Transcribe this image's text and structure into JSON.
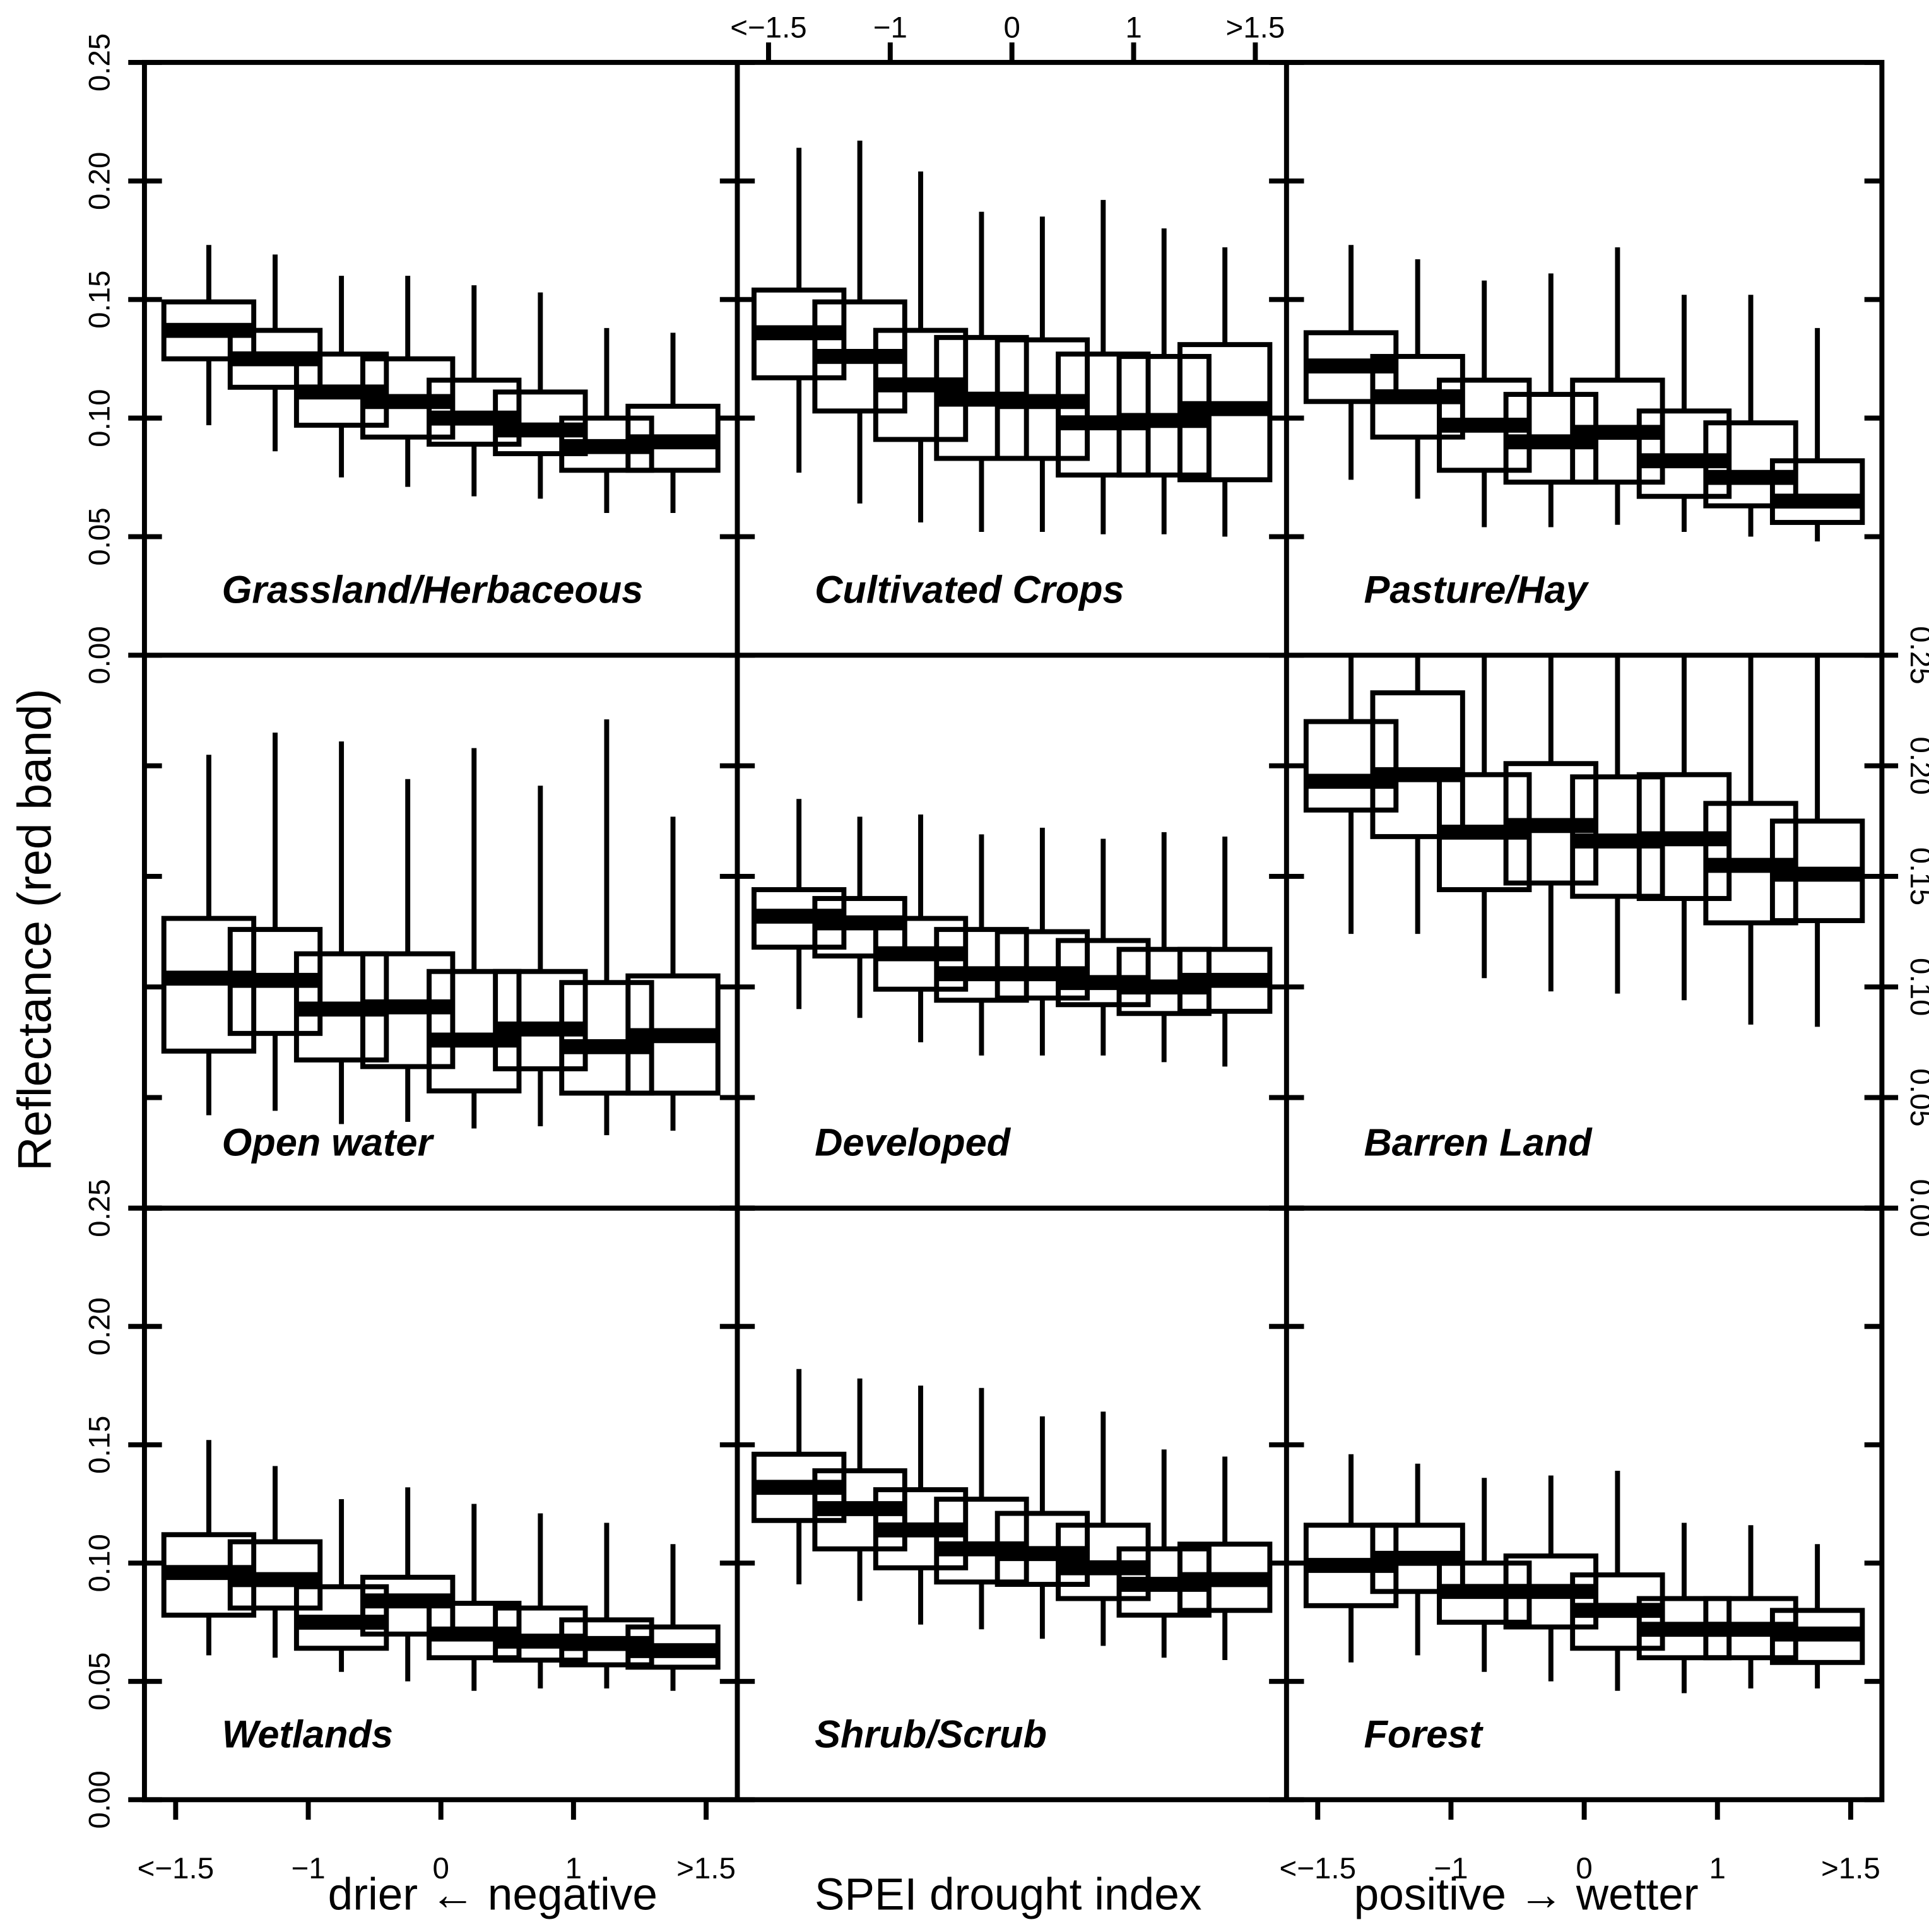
{
  "figure": {
    "ylabel": "Reflectance (red band)",
    "xlabel_left": "drier ← negative",
    "xlabel_center": "SPEI drought index",
    "xlabel_right": "positive → wetter"
  },
  "colors": {
    "ink": "#000000",
    "background": "#ffffff"
  },
  "axes": {
    "x_tick_labels": [
      "<−1.5",
      "−1",
      "0",
      "1",
      ">1.5"
    ],
    "y_tick_labels": [
      "0.00",
      "0.05",
      "0.10",
      "0.15",
      "0.20",
      "0.25"
    ]
  },
  "chart_data": [
    {
      "type": "box",
      "title": "Grassland/Herbaceous",
      "ylim": [
        0,
        0.25
      ],
      "categories": [
        "<−1.5",
        "",
        "−1",
        "",
        "0",
        "",
        "1",
        ">1.5"
      ],
      "boxes": [
        {
          "whisker_low": 0.097,
          "q1": 0.125,
          "median": 0.137,
          "q3": 0.149,
          "whisker_high": 0.173
        },
        {
          "whisker_low": 0.086,
          "q1": 0.113,
          "median": 0.125,
          "q3": 0.137,
          "whisker_high": 0.169
        },
        {
          "whisker_low": 0.075,
          "q1": 0.097,
          "median": 0.111,
          "q3": 0.127,
          "whisker_high": 0.16
        },
        {
          "whisker_low": 0.071,
          "q1": 0.092,
          "median": 0.107,
          "q3": 0.125,
          "whisker_high": 0.16
        },
        {
          "whisker_low": 0.067,
          "q1": 0.089,
          "median": 0.1,
          "q3": 0.116,
          "whisker_high": 0.156
        },
        {
          "whisker_low": 0.066,
          "q1": 0.085,
          "median": 0.095,
          "q3": 0.111,
          "whisker_high": 0.153
        },
        {
          "whisker_low": 0.06,
          "q1": 0.078,
          "median": 0.088,
          "q3": 0.1,
          "whisker_high": 0.138
        },
        {
          "whisker_low": 0.06,
          "q1": 0.078,
          "median": 0.09,
          "q3": 0.105,
          "whisker_high": 0.136
        }
      ]
    },
    {
      "type": "box",
      "title": "Cultivated Crops",
      "ylim": [
        0,
        0.25
      ],
      "categories": [
        "<−1.5",
        "",
        "−1",
        "",
        "0",
        "",
        "1",
        ">1.5"
      ],
      "boxes": [
        {
          "whisker_low": 0.077,
          "q1": 0.117,
          "median": 0.136,
          "q3": 0.154,
          "whisker_high": 0.214
        },
        {
          "whisker_low": 0.064,
          "q1": 0.103,
          "median": 0.126,
          "q3": 0.149,
          "whisker_high": 0.217
        },
        {
          "whisker_low": 0.056,
          "q1": 0.091,
          "median": 0.114,
          "q3": 0.137,
          "whisker_high": 0.204
        },
        {
          "whisker_low": 0.052,
          "q1": 0.083,
          "median": 0.108,
          "q3": 0.134,
          "whisker_high": 0.187
        },
        {
          "whisker_low": 0.052,
          "q1": 0.083,
          "median": 0.107,
          "q3": 0.133,
          "whisker_high": 0.185
        },
        {
          "whisker_low": 0.051,
          "q1": 0.076,
          "median": 0.098,
          "q3": 0.127,
          "whisker_high": 0.192
        },
        {
          "whisker_low": 0.051,
          "q1": 0.076,
          "median": 0.099,
          "q3": 0.126,
          "whisker_high": 0.18
        },
        {
          "whisker_low": 0.05,
          "q1": 0.074,
          "median": 0.104,
          "q3": 0.131,
          "whisker_high": 0.172
        }
      ]
    },
    {
      "type": "box",
      "title": "Pasture/Hay",
      "ylim": [
        0,
        0.25
      ],
      "categories": [
        "<−1.5",
        "",
        "−1",
        "",
        "0",
        "",
        "1",
        ">1.5"
      ],
      "boxes": [
        {
          "whisker_low": 0.074,
          "q1": 0.107,
          "median": 0.122,
          "q3": 0.136,
          "whisker_high": 0.173
        },
        {
          "whisker_low": 0.066,
          "q1": 0.092,
          "median": 0.109,
          "q3": 0.126,
          "whisker_high": 0.167
        },
        {
          "whisker_low": 0.054,
          "q1": 0.078,
          "median": 0.097,
          "q3": 0.116,
          "whisker_high": 0.158
        },
        {
          "whisker_low": 0.054,
          "q1": 0.073,
          "median": 0.09,
          "q3": 0.11,
          "whisker_high": 0.161
        },
        {
          "whisker_low": 0.055,
          "q1": 0.073,
          "median": 0.094,
          "q3": 0.116,
          "whisker_high": 0.172
        },
        {
          "whisker_low": 0.052,
          "q1": 0.067,
          "median": 0.082,
          "q3": 0.103,
          "whisker_high": 0.152
        },
        {
          "whisker_low": 0.05,
          "q1": 0.063,
          "median": 0.075,
          "q3": 0.098,
          "whisker_high": 0.152
        },
        {
          "whisker_low": 0.048,
          "q1": 0.056,
          "median": 0.065,
          "q3": 0.082,
          "whisker_high": 0.138
        }
      ]
    },
    {
      "type": "box",
      "title": "Open water",
      "ylim": [
        0,
        0.25
      ],
      "categories": [
        "<−1.5",
        "",
        "−1",
        "",
        "0",
        "",
        "1",
        ">1.5"
      ],
      "boxes": [
        {
          "whisker_low": 0.042,
          "q1": 0.071,
          "median": 0.104,
          "q3": 0.131,
          "whisker_high": 0.205
        },
        {
          "whisker_low": 0.044,
          "q1": 0.079,
          "median": 0.103,
          "q3": 0.126,
          "whisker_high": 0.215
        },
        {
          "whisker_low": 0.038,
          "q1": 0.067,
          "median": 0.09,
          "q3": 0.115,
          "whisker_high": 0.211
        },
        {
          "whisker_low": 0.039,
          "q1": 0.064,
          "median": 0.091,
          "q3": 0.115,
          "whisker_high": 0.194
        },
        {
          "whisker_low": 0.036,
          "q1": 0.053,
          "median": 0.076,
          "q3": 0.107,
          "whisker_high": 0.208
        },
        {
          "whisker_low": 0.037,
          "q1": 0.063,
          "median": 0.081,
          "q3": 0.107,
          "whisker_high": 0.191
        },
        {
          "whisker_low": 0.033,
          "q1": 0.052,
          "median": 0.073,
          "q3": 0.102,
          "whisker_high": 0.221
        },
        {
          "whisker_low": 0.035,
          "q1": 0.052,
          "median": 0.078,
          "q3": 0.105,
          "whisker_high": 0.177
        }
      ]
    },
    {
      "type": "box",
      "title": "Developed",
      "ylim": [
        0,
        0.25
      ],
      "categories": [
        "<−1.5",
        "",
        "−1",
        "",
        "0",
        "",
        "1",
        ">1.5"
      ],
      "boxes": [
        {
          "whisker_low": 0.09,
          "q1": 0.118,
          "median": 0.132,
          "q3": 0.144,
          "whisker_high": 0.185
        },
        {
          "whisker_low": 0.086,
          "q1": 0.114,
          "median": 0.129,
          "q3": 0.14,
          "whisker_high": 0.177
        },
        {
          "whisker_low": 0.075,
          "q1": 0.099,
          "median": 0.115,
          "q3": 0.131,
          "whisker_high": 0.178
        },
        {
          "whisker_low": 0.069,
          "q1": 0.094,
          "median": 0.106,
          "q3": 0.126,
          "whisker_high": 0.169
        },
        {
          "whisker_low": 0.069,
          "q1": 0.095,
          "median": 0.106,
          "q3": 0.125,
          "whisker_high": 0.172
        },
        {
          "whisker_low": 0.069,
          "q1": 0.092,
          "median": 0.102,
          "q3": 0.121,
          "whisker_high": 0.167
        },
        {
          "whisker_low": 0.066,
          "q1": 0.088,
          "median": 0.1,
          "q3": 0.117,
          "whisker_high": 0.17
        },
        {
          "whisker_low": 0.064,
          "q1": 0.089,
          "median": 0.103,
          "q3": 0.117,
          "whisker_high": 0.168
        }
      ]
    },
    {
      "type": "box",
      "title": "Barren Land",
      "ylim": [
        0,
        0.25
      ],
      "categories": [
        "<−1.5",
        "",
        "−1",
        "",
        "0",
        "",
        "1",
        ">1.5"
      ],
      "boxes": [
        {
          "whisker_low": 0.124,
          "q1": 0.18,
          "median": 0.193,
          "q3": 0.22,
          "whisker_high": 0.25
        },
        {
          "whisker_low": 0.124,
          "q1": 0.168,
          "median": 0.196,
          "q3": 0.233,
          "whisker_high": 0.25
        },
        {
          "whisker_low": 0.104,
          "q1": 0.144,
          "median": 0.17,
          "q3": 0.196,
          "whisker_high": 0.25
        },
        {
          "whisker_low": 0.098,
          "q1": 0.147,
          "median": 0.173,
          "q3": 0.201,
          "whisker_high": 0.25
        },
        {
          "whisker_low": 0.097,
          "q1": 0.141,
          "median": 0.166,
          "q3": 0.195,
          "whisker_high": 0.25
        },
        {
          "whisker_low": 0.094,
          "q1": 0.14,
          "median": 0.167,
          "q3": 0.196,
          "whisker_high": 0.25
        },
        {
          "whisker_low": 0.083,
          "q1": 0.129,
          "median": 0.155,
          "q3": 0.183,
          "whisker_high": 0.25
        },
        {
          "whisker_low": 0.082,
          "q1": 0.13,
          "median": 0.151,
          "q3": 0.175,
          "whisker_high": 0.25
        }
      ]
    },
    {
      "type": "box",
      "title": "Wetlands",
      "ylim": [
        0,
        0.25
      ],
      "categories": [
        "<−1.5",
        "",
        "−1",
        "",
        "0",
        "",
        "1",
        ">1.5"
      ],
      "boxes": [
        {
          "whisker_low": 0.061,
          "q1": 0.078,
          "median": 0.096,
          "q3": 0.112,
          "whisker_high": 0.152
        },
        {
          "whisker_low": 0.06,
          "q1": 0.081,
          "median": 0.093,
          "q3": 0.109,
          "whisker_high": 0.141
        },
        {
          "whisker_low": 0.054,
          "q1": 0.064,
          "median": 0.075,
          "q3": 0.09,
          "whisker_high": 0.127
        },
        {
          "whisker_low": 0.05,
          "q1": 0.07,
          "median": 0.084,
          "q3": 0.094,
          "whisker_high": 0.132
        },
        {
          "whisker_low": 0.046,
          "q1": 0.06,
          "median": 0.07,
          "q3": 0.083,
          "whisker_high": 0.125
        },
        {
          "whisker_low": 0.047,
          "q1": 0.059,
          "median": 0.067,
          "q3": 0.081,
          "whisker_high": 0.121
        },
        {
          "whisker_low": 0.047,
          "q1": 0.057,
          "median": 0.066,
          "q3": 0.076,
          "whisker_high": 0.117
        },
        {
          "whisker_low": 0.046,
          "q1": 0.056,
          "median": 0.063,
          "q3": 0.073,
          "whisker_high": 0.108
        }
      ]
    },
    {
      "type": "box",
      "title": "Shrub/Scrub",
      "ylim": [
        0,
        0.25
      ],
      "categories": [
        "<−1.5",
        "",
        "−1",
        "",
        "0",
        "",
        "1",
        ">1.5"
      ],
      "boxes": [
        {
          "whisker_low": 0.091,
          "q1": 0.118,
          "median": 0.132,
          "q3": 0.146,
          "whisker_high": 0.182
        },
        {
          "whisker_low": 0.084,
          "q1": 0.106,
          "median": 0.123,
          "q3": 0.139,
          "whisker_high": 0.178
        },
        {
          "whisker_low": 0.074,
          "q1": 0.098,
          "median": 0.114,
          "q3": 0.131,
          "whisker_high": 0.175
        },
        {
          "whisker_low": 0.072,
          "q1": 0.092,
          "median": 0.106,
          "q3": 0.127,
          "whisker_high": 0.174
        },
        {
          "whisker_low": 0.068,
          "q1": 0.091,
          "median": 0.104,
          "q3": 0.121,
          "whisker_high": 0.162
        },
        {
          "whisker_low": 0.065,
          "q1": 0.085,
          "median": 0.098,
          "q3": 0.116,
          "whisker_high": 0.164
        },
        {
          "whisker_low": 0.06,
          "q1": 0.078,
          "median": 0.091,
          "q3": 0.106,
          "whisker_high": 0.148
        },
        {
          "whisker_low": 0.059,
          "q1": 0.08,
          "median": 0.093,
          "q3": 0.108,
          "whisker_high": 0.145
        }
      ]
    },
    {
      "type": "box",
      "title": "Forest",
      "ylim": [
        0,
        0.25
      ],
      "categories": [
        "<−1.5",
        "",
        "−1",
        "",
        "0",
        "",
        "1",
        ">1.5"
      ],
      "boxes": [
        {
          "whisker_low": 0.058,
          "q1": 0.082,
          "median": 0.099,
          "q3": 0.116,
          "whisker_high": 0.146
        },
        {
          "whisker_low": 0.061,
          "q1": 0.088,
          "median": 0.102,
          "q3": 0.116,
          "whisker_high": 0.142
        },
        {
          "whisker_low": 0.054,
          "q1": 0.075,
          "median": 0.088,
          "q3": 0.1,
          "whisker_high": 0.136
        },
        {
          "whisker_low": 0.05,
          "q1": 0.073,
          "median": 0.088,
          "q3": 0.103,
          "whisker_high": 0.137
        },
        {
          "whisker_low": 0.046,
          "q1": 0.064,
          "median": 0.08,
          "q3": 0.095,
          "whisker_high": 0.139
        },
        {
          "whisker_low": 0.045,
          "q1": 0.06,
          "median": 0.072,
          "q3": 0.085,
          "whisker_high": 0.117
        },
        {
          "whisker_low": 0.047,
          "q1": 0.06,
          "median": 0.072,
          "q3": 0.085,
          "whisker_high": 0.116
        },
        {
          "whisker_low": 0.047,
          "q1": 0.058,
          "median": 0.07,
          "q3": 0.08,
          "whisker_high": 0.108
        }
      ]
    }
  ]
}
